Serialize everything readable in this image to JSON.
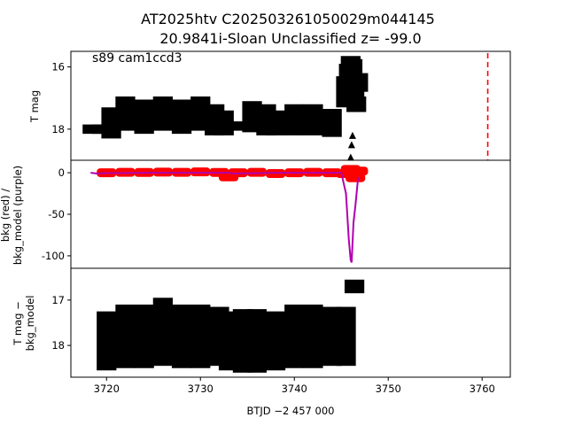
{
  "title": {
    "line1": "AT2025htv  C202503261050029m044145",
    "line2": "20.9841i-Sloan Unclassified z= -99.0"
  },
  "chart_data": [
    {
      "type": "scatter",
      "panel": "top",
      "annotation": "s89 cam1ccd3",
      "xlabel": "",
      "ylabel": "T mag",
      "xlim": [
        3716.2,
        3763.0
      ],
      "ylim": [
        19.0,
        15.5
      ],
      "y_inverted": true,
      "yticks": [
        "16",
        "18"
      ],
      "marker": "triangle",
      "series": [
        {
          "color": "#000000",
          "x": [
            3718.5,
            3719.5,
            3720.5,
            3722.0,
            3724.0,
            3726.0,
            3728.0,
            3730.0,
            3731.5,
            3732.5,
            3733.5,
            3735.5,
            3737.0,
            3738.0,
            3740.0,
            3742.0,
            3744.0,
            3745.5,
            3745.8,
            3746.0,
            3746.2,
            3746.4,
            3746.6,
            3746.8
          ],
          "y": [
            18.0,
            18.0,
            17.8,
            17.5,
            17.6,
            17.5,
            17.6,
            17.5,
            17.7,
            17.8,
            17.9,
            17.6,
            17.7,
            17.8,
            17.7,
            17.7,
            17.8,
            16.8,
            16.2,
            15.8,
            16.0,
            16.8,
            17.2,
            16.5
          ],
          "y_spread": [
            0.3,
            0.3,
            1.0,
            1.1,
            1.1,
            1.1,
            1.1,
            1.1,
            1.0,
            0.8,
            0.3,
            1.0,
            1.0,
            0.8,
            1.0,
            1.0,
            0.9,
            1.0,
            0.6,
            0.3,
            0.5,
            0.6,
            0.5,
            0.6
          ]
        },
        {
          "name": "",
          "kind": "vline",
          "color": "#ff0000",
          "x": 3760.6,
          "style": "dashed"
        }
      ]
    },
    {
      "type": "scatter",
      "panel": "middle",
      "xlabel": "",
      "ylabel": "bkg (red) /\nbkg_model (purple)",
      "xlim": [
        3716.2,
        3763.0
      ],
      "ylim": [
        -115,
        15
      ],
      "yticks": [
        0,
        -50,
        -100
      ],
      "series": [
        {
          "color": "#ff0000",
          "x": [
            3720.0,
            3722.0,
            3724.0,
            3726.0,
            3728.0,
            3730.0,
            3732.0,
            3733.0,
            3734.0,
            3736.0,
            3738.0,
            3740.0,
            3742.0,
            3744.0,
            3745.5,
            3746.0,
            3746.5,
            3746.8
          ],
          "y": [
            0.0,
            0.5,
            0.3,
            0.8,
            0.5,
            1.0,
            0.3,
            -5.0,
            0.0,
            0.5,
            -1.0,
            0.0,
            0.5,
            0.0,
            -1.0,
            4.0,
            -6.0,
            2.0
          ]
        },
        {
          "color": "#b000b0",
          "kind": "line",
          "x": [
            3718.3,
            3719.0,
            3720.0,
            3725.0,
            3730.0,
            3733.0,
            3733.5,
            3738.0,
            3740.0,
            3745.0,
            3745.5,
            3745.8,
            3746.0,
            3746.1,
            3746.3,
            3746.5,
            3746.8
          ],
          "y": [
            0.0,
            -1.0,
            -0.5,
            0.0,
            0.0,
            0.0,
            -1.0,
            0.0,
            0.0,
            0.0,
            -25.0,
            -80.0,
            -105.0,
            -108.0,
            -60.0,
            -40.0,
            -5.0
          ]
        }
      ]
    },
    {
      "type": "scatter",
      "panel": "bottom",
      "xlabel": "BTJD −2 457 000",
      "ylabel": "T mag −\nbkg_model",
      "xlim": [
        3716.2,
        3763.0
      ],
      "ylim": [
        18.7,
        16.3
      ],
      "y_inverted": true,
      "xticks": [
        3720,
        3730,
        3740,
        3750,
        3760
      ],
      "yticks": [
        "17",
        "18"
      ],
      "marker": "circle",
      "series": [
        {
          "color": "#000000",
          "x": [
            3720.0,
            3722.0,
            3724.0,
            3726.0,
            3728.0,
            3730.0,
            3732.0,
            3733.0,
            3734.5,
            3736.0,
            3738.0,
            3740.0,
            3742.0,
            3744.0,
            3745.5,
            3746.4
          ],
          "y": [
            17.9,
            17.8,
            17.8,
            17.7,
            17.8,
            17.8,
            17.8,
            17.9,
            17.9,
            17.9,
            17.9,
            17.8,
            17.8,
            17.8,
            17.8,
            16.7
          ],
          "y_spread": [
            1.3,
            1.4,
            1.4,
            1.5,
            1.4,
            1.4,
            1.3,
            1.3,
            1.4,
            1.4,
            1.3,
            1.4,
            1.4,
            1.3,
            1.3,
            0.3
          ]
        }
      ]
    }
  ]
}
